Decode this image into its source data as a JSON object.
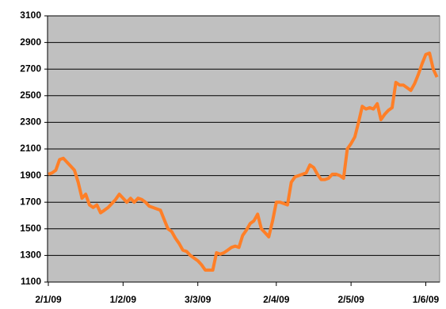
{
  "chart_data": {
    "type": "line",
    "color": "#ff7f27",
    "grid": true,
    "background": "#c0c0c0",
    "ylim": [
      1100,
      3100
    ],
    "yticks": [
      1100,
      1300,
      1500,
      1700,
      1900,
      2100,
      2300,
      2500,
      2700,
      2900,
      3100
    ],
    "categories": [
      "2/1/09",
      null,
      null,
      null,
      null,
      null,
      null,
      null,
      null,
      null,
      null,
      null,
      null,
      null,
      null,
      null,
      null,
      null,
      null,
      null,
      "1/2/09",
      null,
      null,
      null,
      null,
      null,
      null,
      null,
      null,
      null,
      null,
      null,
      null,
      null,
      null,
      null,
      null,
      null,
      null,
      null,
      "3/3/09",
      null,
      null,
      null,
      null,
      null,
      null,
      null,
      null,
      null,
      null,
      null,
      null,
      null,
      null,
      null,
      null,
      null,
      null,
      null,
      null,
      "2/4/09",
      null,
      null,
      null,
      null,
      null,
      null,
      null,
      null,
      null,
      null,
      null,
      null,
      null,
      null,
      null,
      null,
      null,
      null,
      null,
      "2/5/09",
      null,
      null,
      null,
      null,
      null,
      null,
      null,
      null,
      null,
      null,
      null,
      null,
      null,
      null,
      null,
      null,
      null,
      null,
      null,
      "1/6/09",
      null,
      null,
      null
    ],
    "values": [
      1910,
      1920,
      1940,
      2020,
      2030,
      2000,
      1970,
      1940,
      1850,
      1730,
      1760,
      1680,
      1660,
      1680,
      1620,
      1640,
      1660,
      1690,
      1720,
      1760,
      1730,
      1700,
      1730,
      1700,
      1730,
      1720,
      1700,
      1670,
      1660,
      1650,
      1640,
      1570,
      1500,
      1480,
      1430,
      1390,
      1340,
      1330,
      1300,
      1280,
      1260,
      1230,
      1190,
      1190,
      1190,
      1320,
      1310,
      1320,
      1340,
      1360,
      1370,
      1360,
      1450,
      1490,
      1540,
      1560,
      1610,
      1500,
      1470,
      1440,
      1560,
      1700,
      1700,
      1690,
      1680,
      1850,
      1890,
      1900,
      1910,
      1920,
      1980,
      1960,
      1910,
      1870,
      1870,
      1880,
      1910,
      1910,
      1900,
      1880,
      2100,
      2140,
      2190,
      2300,
      2420,
      2400,
      2410,
      2400,
      2440,
      2320,
      2360,
      2390,
      2410,
      2600,
      2580,
      2580,
      2560,
      2540,
      2590,
      2660,
      2740,
      2810,
      2820,
      2700,
      2640
    ]
  }
}
